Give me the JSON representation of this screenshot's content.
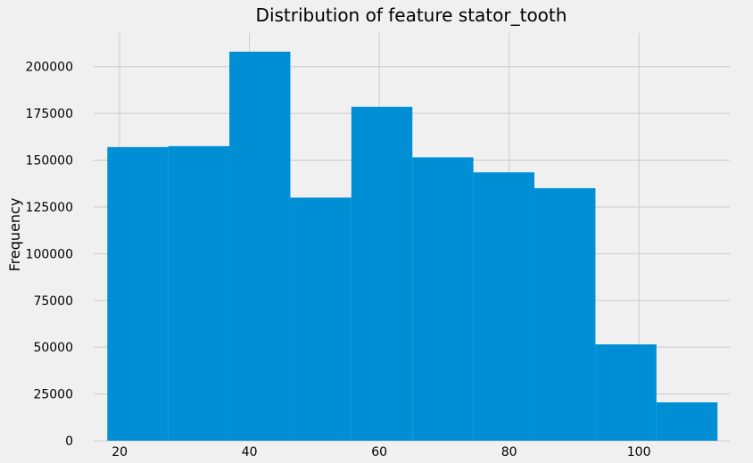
{
  "chart_data": {
    "type": "bar",
    "title": "Distribution of feature stator_tooth",
    "xlabel": "",
    "ylabel": "Frequency",
    "xlim": [
      16,
      114
    ],
    "ylim": [
      0,
      218000
    ],
    "grid": true,
    "bar_color": "#008fd5",
    "bins": [
      {
        "start": 18.1,
        "end": 27.5,
        "count": 157000
      },
      {
        "start": 27.5,
        "end": 36.9,
        "count": 157500
      },
      {
        "start": 36.9,
        "end": 46.3,
        "count": 208000
      },
      {
        "start": 46.3,
        "end": 55.7,
        "count": 130000
      },
      {
        "start": 55.7,
        "end": 65.1,
        "count": 178500
      },
      {
        "start": 65.1,
        "end": 74.5,
        "count": 151500
      },
      {
        "start": 74.5,
        "end": 83.9,
        "count": 143500
      },
      {
        "start": 83.9,
        "end": 93.3,
        "count": 135000
      },
      {
        "start": 93.3,
        "end": 102.7,
        "count": 51500
      },
      {
        "start": 102.7,
        "end": 112.1,
        "count": 20500
      }
    ],
    "x_ticks": [
      20,
      40,
      60,
      80,
      100
    ],
    "y_ticks": [
      0,
      25000,
      50000,
      75000,
      100000,
      125000,
      150000,
      175000,
      200000
    ]
  }
}
